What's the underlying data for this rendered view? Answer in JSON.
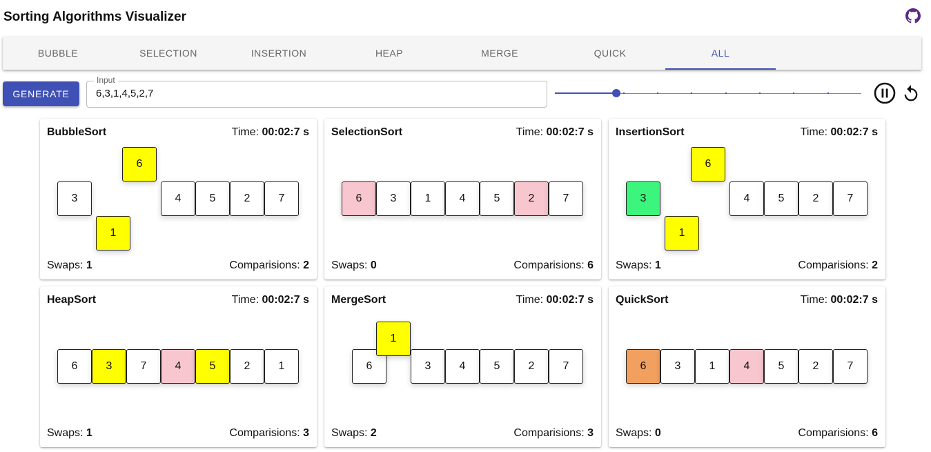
{
  "header": {
    "title": "Sorting Algorithms Visualizer",
    "github_icon": "github-icon"
  },
  "tabs": [
    {
      "label": "Bubble"
    },
    {
      "label": "Selection"
    },
    {
      "label": "Insertion"
    },
    {
      "label": "Heap"
    },
    {
      "label": "Merge"
    },
    {
      "label": "Quick"
    },
    {
      "label": "All"
    }
  ],
  "active_tab": "All",
  "controls": {
    "generate_label": "Generate",
    "input_label": "Input",
    "input_value": "6,3,1,4,5,2,7",
    "speed_level_fraction": 0.2,
    "speed_steps": 9,
    "pause_icon": "pause-icon",
    "reset_icon": "reset-icon"
  },
  "labels": {
    "time": "Time:",
    "swaps": "Swaps:",
    "comparisons": "Comparisions:"
  },
  "colors": {
    "accent": "#3f51b5",
    "yellow": "#ffff00",
    "pink": "#f8c6cf",
    "green": "#3cf57c",
    "orange": "#f2a060"
  },
  "cards": [
    {
      "title": "BubbleSort",
      "time": "00:02:7 s",
      "swaps": "1",
      "comparisons": "2",
      "cells": [
        {
          "value": "3",
          "color": "white",
          "offset": "none"
        },
        {
          "value": "1",
          "color": "yellow",
          "offset": "down"
        },
        {
          "value": "6",
          "color": "yellow",
          "offset": "up"
        },
        {
          "value": "4",
          "color": "white",
          "offset": "none"
        },
        {
          "value": "5",
          "color": "white",
          "offset": "none"
        },
        {
          "value": "2",
          "color": "white",
          "offset": "none"
        },
        {
          "value": "7",
          "color": "white",
          "offset": "none"
        }
      ]
    },
    {
      "title": "SelectionSort",
      "time": "00:02:7 s",
      "swaps": "0",
      "comparisons": "6",
      "cells": [
        {
          "value": "6",
          "color": "pink",
          "offset": "none"
        },
        {
          "value": "3",
          "color": "white",
          "offset": "none"
        },
        {
          "value": "1",
          "color": "white",
          "offset": "none"
        },
        {
          "value": "4",
          "color": "white",
          "offset": "none"
        },
        {
          "value": "5",
          "color": "white",
          "offset": "none"
        },
        {
          "value": "2",
          "color": "pink",
          "offset": "none"
        },
        {
          "value": "7",
          "color": "white",
          "offset": "none"
        }
      ]
    },
    {
      "title": "InsertionSort",
      "time": "00:02:7 s",
      "swaps": "1",
      "comparisons": "2",
      "cells": [
        {
          "value": "3",
          "color": "green",
          "offset": "none"
        },
        {
          "value": "1",
          "color": "yellow",
          "offset": "down"
        },
        {
          "value": "6",
          "color": "yellow",
          "offset": "up"
        },
        {
          "value": "4",
          "color": "white",
          "offset": "none"
        },
        {
          "value": "5",
          "color": "white",
          "offset": "none"
        },
        {
          "value": "2",
          "color": "white",
          "offset": "none"
        },
        {
          "value": "7",
          "color": "white",
          "offset": "none"
        }
      ]
    },
    {
      "title": "HeapSort",
      "time": "00:02:7 s",
      "swaps": "1",
      "comparisons": "3",
      "cells": [
        {
          "value": "6",
          "color": "white",
          "offset": "none"
        },
        {
          "value": "3",
          "color": "yellow",
          "offset": "none"
        },
        {
          "value": "7",
          "color": "white",
          "offset": "none"
        },
        {
          "value": "4",
          "color": "pink",
          "offset": "none"
        },
        {
          "value": "5",
          "color": "yellow",
          "offset": "none"
        },
        {
          "value": "2",
          "color": "white",
          "offset": "none"
        },
        {
          "value": "1",
          "color": "white",
          "offset": "none"
        }
      ]
    },
    {
      "title": "MergeSort",
      "time": "00:02:7 s",
      "swaps": "2",
      "comparisons": "3",
      "cells": [
        {
          "value": "6",
          "color": "white",
          "offset": "merge-left"
        },
        {
          "value": "1",
          "color": "yellow",
          "offset": "merge-up"
        },
        {
          "value": "3",
          "color": "white",
          "offset": "none"
        },
        {
          "value": "4",
          "color": "white",
          "offset": "none"
        },
        {
          "value": "5",
          "color": "white",
          "offset": "none"
        },
        {
          "value": "2",
          "color": "white",
          "offset": "none"
        },
        {
          "value": "7",
          "color": "white",
          "offset": "none"
        }
      ]
    },
    {
      "title": "QuickSort",
      "time": "00:02:7 s",
      "swaps": "0",
      "comparisons": "6",
      "cells": [
        {
          "value": "6",
          "color": "orange",
          "offset": "none"
        },
        {
          "value": "3",
          "color": "white",
          "offset": "none"
        },
        {
          "value": "1",
          "color": "white",
          "offset": "none"
        },
        {
          "value": "4",
          "color": "pink",
          "offset": "none"
        },
        {
          "value": "5",
          "color": "white",
          "offset": "none"
        },
        {
          "value": "2",
          "color": "white",
          "offset": "none"
        },
        {
          "value": "7",
          "color": "white",
          "offset": "none"
        }
      ]
    }
  ]
}
